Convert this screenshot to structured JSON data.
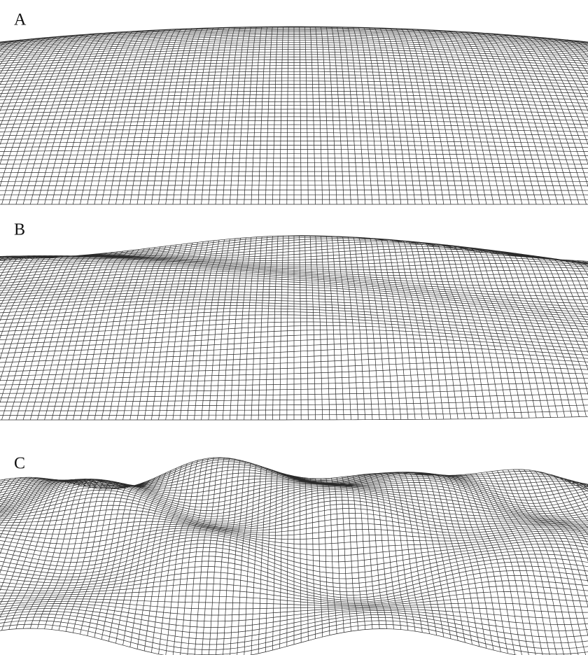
{
  "panels": [
    {
      "label": "A"
    },
    {
      "label": "B"
    },
    {
      "label": "C"
    }
  ]
}
